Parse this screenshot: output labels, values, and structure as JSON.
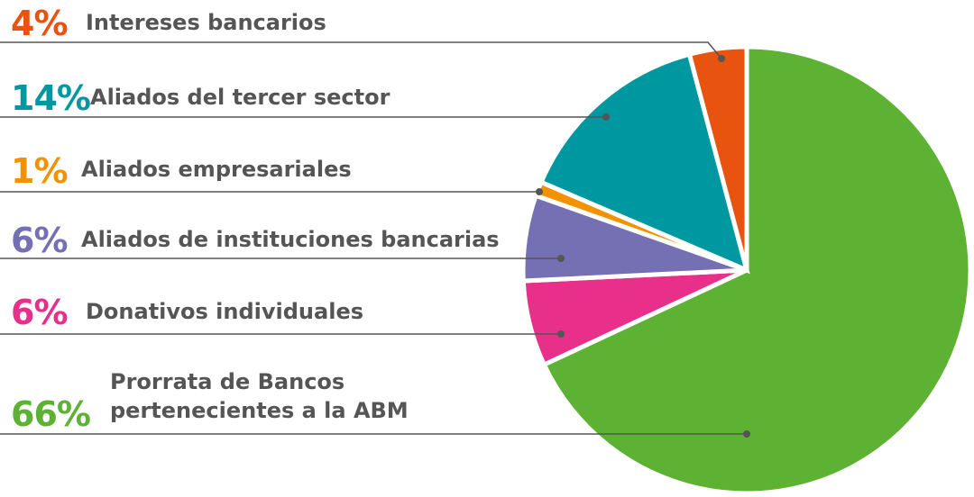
{
  "chart_data": {
    "type": "pie",
    "categories": [
      "Intereses bancarios",
      "Aliados del tercer sector",
      "Aliados empresariales",
      "Aliados de instituciones bancarias",
      "Donativos individuales",
      "Prorrata de Bancos pertenecientes a la ABM"
    ],
    "values": [
      4,
      14,
      1,
      6,
      6,
      66
    ],
    "value_labels": [
      "4%",
      "14%",
      "1%",
      "6%",
      "6%",
      "66%"
    ],
    "colors": [
      "#e8540f",
      "#0098a0",
      "#f39200",
      "#7570b3",
      "#e8308a",
      "#5db233"
    ]
  }
}
